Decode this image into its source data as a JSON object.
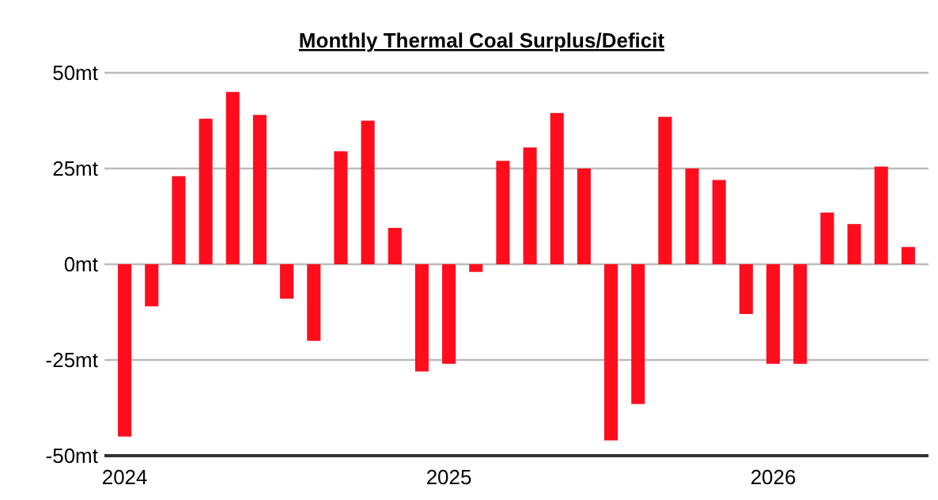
{
  "chart_data": {
    "type": "bar",
    "title": "Monthly Thermal Coal Surplus/Deficit",
    "categories": [
      "2024",
      null,
      null,
      null,
      null,
      null,
      null,
      null,
      null,
      null,
      null,
      null,
      "2025",
      null,
      null,
      null,
      null,
      null,
      null,
      null,
      null,
      null,
      null,
      null,
      "2026",
      null,
      null,
      null,
      null,
      null
    ],
    "values": [
      -45,
      -11,
      23,
      38,
      45,
      39,
      -9,
      -20,
      29.5,
      37.5,
      9.5,
      -28,
      -26,
      -2,
      27,
      30.5,
      39.5,
      25,
      -46,
      -36.5,
      38.5,
      25,
      22,
      -13,
      -26,
      -26,
      13.5,
      10.5,
      25.5,
      4.5
    ],
    "color": "#ff0d1d",
    "ylim": [
      -50,
      50
    ],
    "yticks": [
      {
        "value": -50,
        "label": "-50mt"
      },
      {
        "value": -25,
        "label": "-25mt"
      },
      {
        "value": 0,
        "label": "0mt"
      },
      {
        "value": 25,
        "label": "25mt"
      },
      {
        "value": 50,
        "label": "50mt"
      }
    ],
    "grid": "y"
  }
}
